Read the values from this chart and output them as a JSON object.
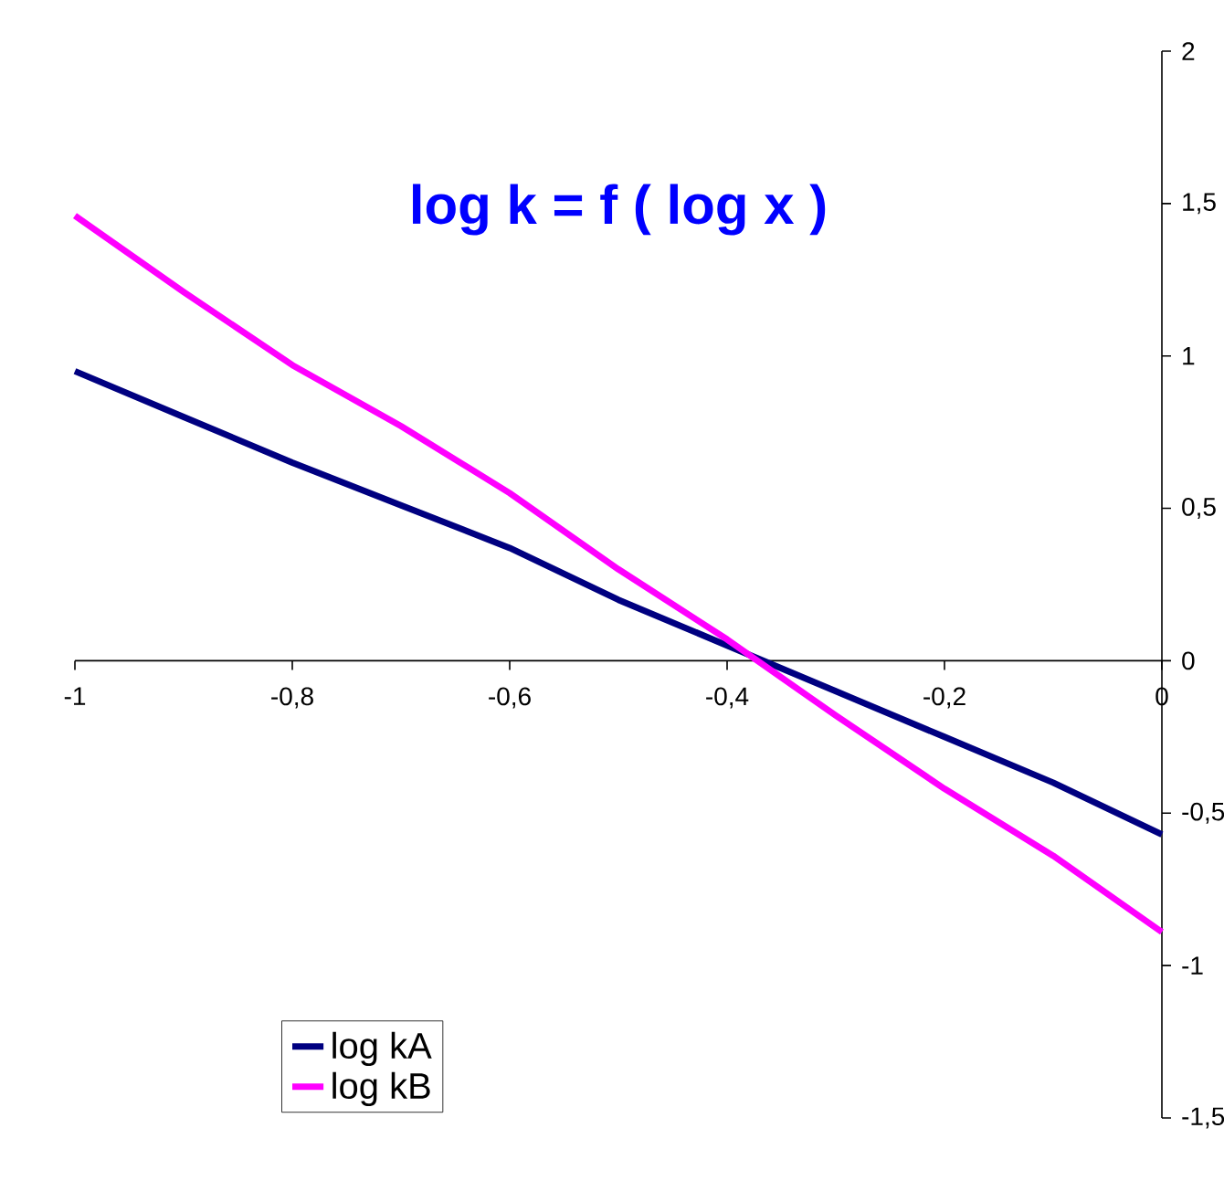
{
  "chart_data": {
    "type": "line",
    "title": "log k = f ( log x )",
    "x": [
      -1,
      -0.9,
      -0.8,
      -0.7,
      -0.6,
      -0.5,
      -0.4,
      -0.3,
      -0.2,
      -0.1,
      0
    ],
    "series": [
      {
        "name": "log kA",
        "color": "#000080",
        "values": [
          0.95,
          0.8,
          0.65,
          0.51,
          0.37,
          0.2,
          0.05,
          -0.1,
          -0.25,
          -0.4,
          -0.57
        ]
      },
      {
        "name": "log kB",
        "color": "#ff00ff",
        "values": [
          1.46,
          1.21,
          0.97,
          0.77,
          0.55,
          0.3,
          0.07,
          -0.18,
          -0.42,
          -0.64,
          -0.89
        ]
      }
    ],
    "xlim": [
      -1,
      0
    ],
    "ylim": [
      -1.5,
      2
    ],
    "xticks": [
      -1,
      {
        "value": -0.8,
        "label": "-0,8"
      },
      {
        "value": -0.6,
        "label": "-0,6"
      },
      {
        "value": -0.4,
        "label": "-0,4"
      },
      {
        "value": -0.2,
        "label": "-0,2"
      },
      0
    ],
    "yticks": [
      {
        "value": -1.5,
        "label": "-1,5"
      },
      -1,
      {
        "value": -0.5,
        "label": "-0,5"
      },
      0,
      {
        "value": 0.5,
        "label": "0,5"
      },
      1,
      {
        "value": 1.5,
        "label": "1,5"
      },
      2
    ],
    "legend": "bottom left",
    "grid": false,
    "marker": "none",
    "line_style": "solid"
  }
}
